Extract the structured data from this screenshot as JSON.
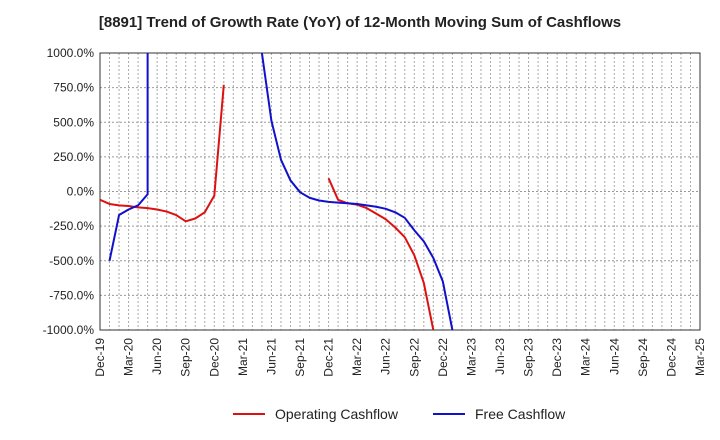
{
  "chart_data": {
    "type": "line",
    "title": "[8891]  Trend of Growth Rate (YoY) of 12-Month Moving Sum of Cashflows",
    "xlabel": "",
    "ylabel": "",
    "ylim": [
      -1000,
      1000
    ],
    "y_ticks": [
      1000,
      750,
      500,
      250,
      0,
      -250,
      -500,
      -750,
      -1000
    ],
    "y_tick_labels": [
      "1000.0%",
      "750.0%",
      "500.0%",
      "250.0%",
      "0.0%",
      "-250.0%",
      "-500.0%",
      "-750.0%",
      "-1000.0%"
    ],
    "x_tick_labels": [
      "Dec-19",
      "Mar-20",
      "Jun-20",
      "Sep-20",
      "Dec-20",
      "Mar-21",
      "Jun-21",
      "Sep-21",
      "Dec-21",
      "Mar-22",
      "Jun-22",
      "Sep-22",
      "Dec-22",
      "Mar-23",
      "Jun-23",
      "Sep-23",
      "Dec-23",
      "Mar-24",
      "Jun-24",
      "Sep-24",
      "Dec-24",
      "Mar-25"
    ],
    "grid": true,
    "legend_position": "bottom",
    "series": [
      {
        "name": "Operating Cashflow",
        "color": "#dd1111",
        "segments": [
          [
            {
              "x": "Dec-19",
              "y": -60
            },
            {
              "x": "Jan-20",
              "y": -90
            },
            {
              "x": "Feb-20",
              "y": -100
            },
            {
              "x": "Mar-20",
              "y": -105
            },
            {
              "x": "Apr-20",
              "y": -115
            },
            {
              "x": "May-20",
              "y": -120
            },
            {
              "x": "Jun-20",
              "y": -130
            },
            {
              "x": "Jul-20",
              "y": -145
            },
            {
              "x": "Aug-20",
              "y": -170
            },
            {
              "x": "Sep-20",
              "y": -215
            },
            {
              "x": "Oct-20",
              "y": -195
            },
            {
              "x": "Nov-20",
              "y": -150
            },
            {
              "x": "Dec-20",
              "y": -30
            },
            {
              "x": "Jan-21",
              "y": 770
            }
          ],
          [
            {
              "x": "Dec-21",
              "y": 95
            },
            {
              "x": "Jan-22",
              "y": -60
            },
            {
              "x": "Feb-22",
              "y": -85
            },
            {
              "x": "Mar-22",
              "y": -95
            },
            {
              "x": "Apr-22",
              "y": -120
            },
            {
              "x": "May-22",
              "y": -160
            },
            {
              "x": "Jun-22",
              "y": -200
            },
            {
              "x": "Jul-22",
              "y": -260
            },
            {
              "x": "Aug-22",
              "y": -330
            },
            {
              "x": "Sep-22",
              "y": -460
            },
            {
              "x": "Oct-22",
              "y": -660
            },
            {
              "x": "Nov-22",
              "y": -1000
            }
          ]
        ]
      },
      {
        "name": "Free Cashflow",
        "color": "#1111cc",
        "segments": [
          [
            {
              "x": "Jan-20",
              "y": -500
            },
            {
              "x": "Feb-20",
              "y": -170
            },
            {
              "x": "Mar-20",
              "y": -130
            },
            {
              "x": "Apr-20",
              "y": -100
            },
            {
              "x": "May-20",
              "y": -20
            },
            {
              "x": "May-20",
              "y": 1000
            }
          ],
          [
            {
              "x": "May-21",
              "y": 1000
            },
            {
              "x": "Jun-21",
              "y": 510
            },
            {
              "x": "Jul-21",
              "y": 230
            },
            {
              "x": "Aug-21",
              "y": 80
            },
            {
              "x": "Sep-21",
              "y": -5
            },
            {
              "x": "Oct-21",
              "y": -45
            },
            {
              "x": "Nov-21",
              "y": -65
            },
            {
              "x": "Dec-21",
              "y": -75
            },
            {
              "x": "Jan-22",
              "y": -80
            },
            {
              "x": "Feb-22",
              "y": -85
            },
            {
              "x": "Mar-22",
              "y": -90
            },
            {
              "x": "Apr-22",
              "y": -100
            },
            {
              "x": "May-22",
              "y": -110
            },
            {
              "x": "Jun-22",
              "y": -125
            },
            {
              "x": "Jul-22",
              "y": -150
            },
            {
              "x": "Aug-22",
              "y": -190
            },
            {
              "x": "Sep-22",
              "y": -280
            },
            {
              "x": "Oct-22",
              "y": -360
            },
            {
              "x": "Nov-22",
              "y": -480
            },
            {
              "x": "Dec-22",
              "y": -650
            },
            {
              "x": "Jan-23",
              "y": -1000
            }
          ]
        ]
      }
    ]
  }
}
